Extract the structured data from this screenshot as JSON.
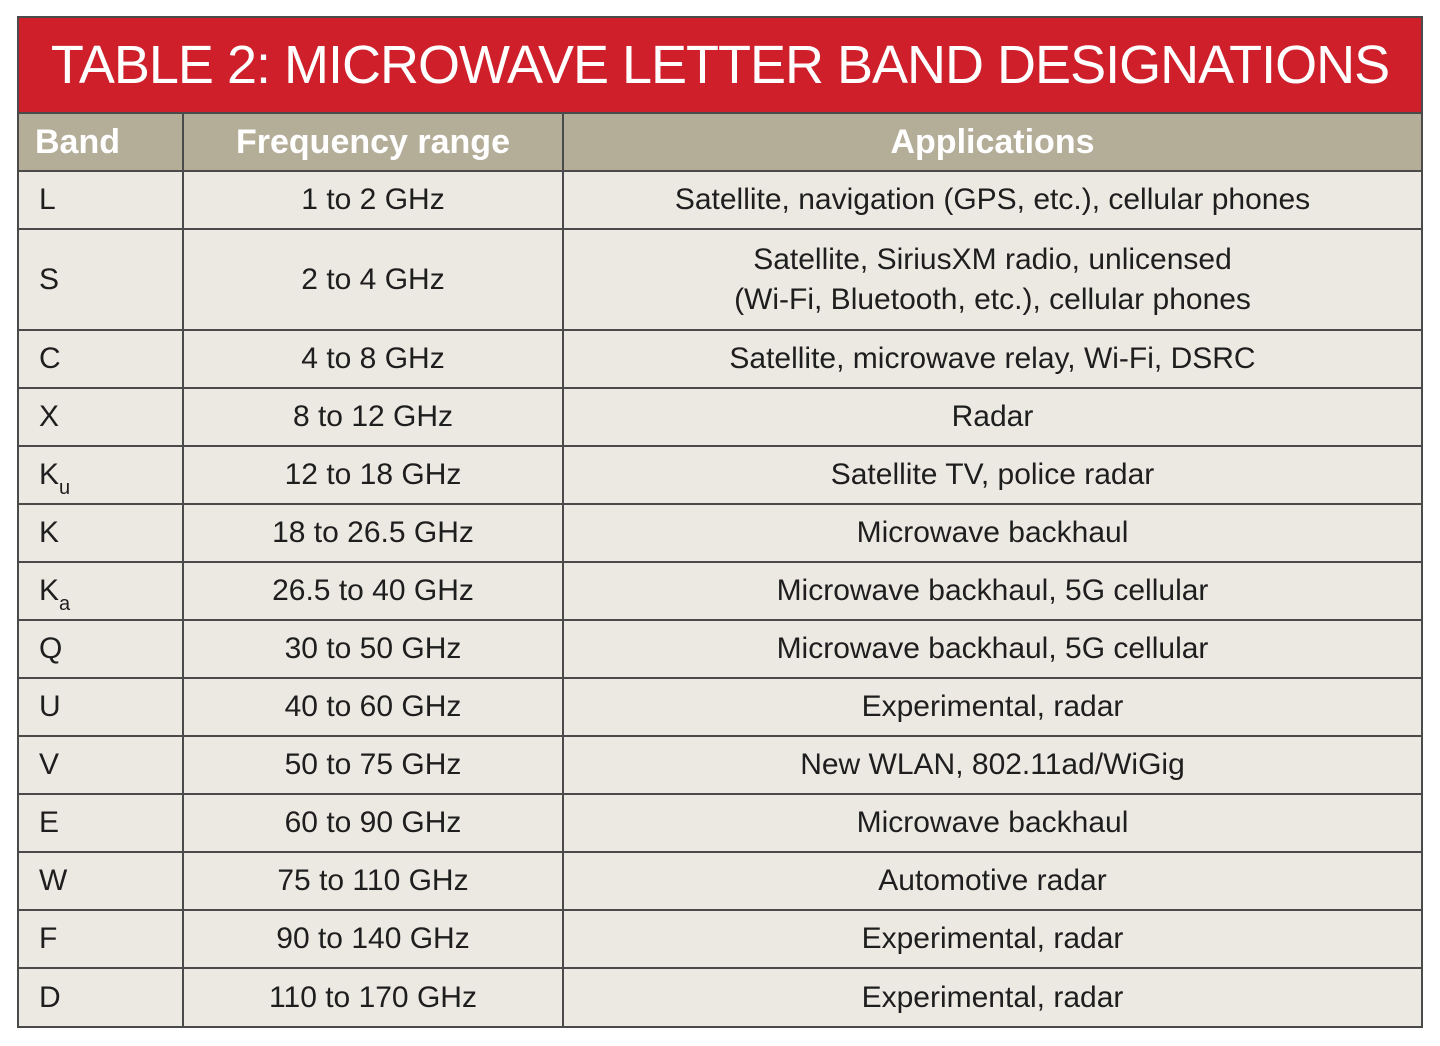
{
  "title": "TABLE 2: MICROWAVE LETTER BAND DESIGNATIONS",
  "headers": {
    "band": "Band",
    "frequency": "Frequency range",
    "applications": "Applications"
  },
  "colors": {
    "title_bg": "#cf1f2a",
    "header_bg": "#b4ad98",
    "body_bg": "#ece9e3"
  },
  "rows": [
    {
      "band": "L",
      "sub": "",
      "freq": "1 to 2 GHz",
      "app_line1": "Satellite, navigation (GPS, etc.), cellular phones",
      "app_line2": ""
    },
    {
      "band": "S",
      "sub": "",
      "freq": "2 to 4 GHz",
      "app_line1": "Satellite, SiriusXM radio, unlicensed",
      "app_line2": "(Wi-Fi, Bluetooth, etc.), cellular phones"
    },
    {
      "band": "C",
      "sub": "",
      "freq": "4 to 8 GHz",
      "app_line1": "Satellite, microwave relay, Wi-Fi, DSRC",
      "app_line2": ""
    },
    {
      "band": "X",
      "sub": "",
      "freq": "8 to 12 GHz",
      "app_line1": "Radar",
      "app_line2": ""
    },
    {
      "band": "K",
      "sub": "u",
      "freq": "12 to 18 GHz",
      "app_line1": "Satellite TV, police radar",
      "app_line2": ""
    },
    {
      "band": "K",
      "sub": "",
      "freq": "18 to 26.5 GHz",
      "app_line1": "Microwave backhaul",
      "app_line2": ""
    },
    {
      "band": "K",
      "sub": "a",
      "freq": "26.5 to 40 GHz",
      "app_line1": "Microwave backhaul, 5G cellular",
      "app_line2": ""
    },
    {
      "band": "Q",
      "sub": "",
      "freq": "30 to 50 GHz",
      "app_line1": "Microwave backhaul, 5G cellular",
      "app_line2": ""
    },
    {
      "band": "U",
      "sub": "",
      "freq": "40 to 60 GHz",
      "app_line1": "Experimental, radar",
      "app_line2": ""
    },
    {
      "band": "V",
      "sub": "",
      "freq": "50 to 75 GHz",
      "app_line1": "New WLAN, 802.11ad/WiGig",
      "app_line2": ""
    },
    {
      "band": "E",
      "sub": "",
      "freq": "60 to 90 GHz",
      "app_line1": "Microwave backhaul",
      "app_line2": ""
    },
    {
      "band": "W",
      "sub": "",
      "freq": "75 to 110 GHz",
      "app_line1": "Automotive radar",
      "app_line2": ""
    },
    {
      "band": "F",
      "sub": "",
      "freq": "90 to 140 GHz",
      "app_line1": "Experimental, radar",
      "app_line2": ""
    },
    {
      "band": "D",
      "sub": "",
      "freq": "110 to 170 GHz",
      "app_line1": "Experimental, radar",
      "app_line2": ""
    }
  ]
}
